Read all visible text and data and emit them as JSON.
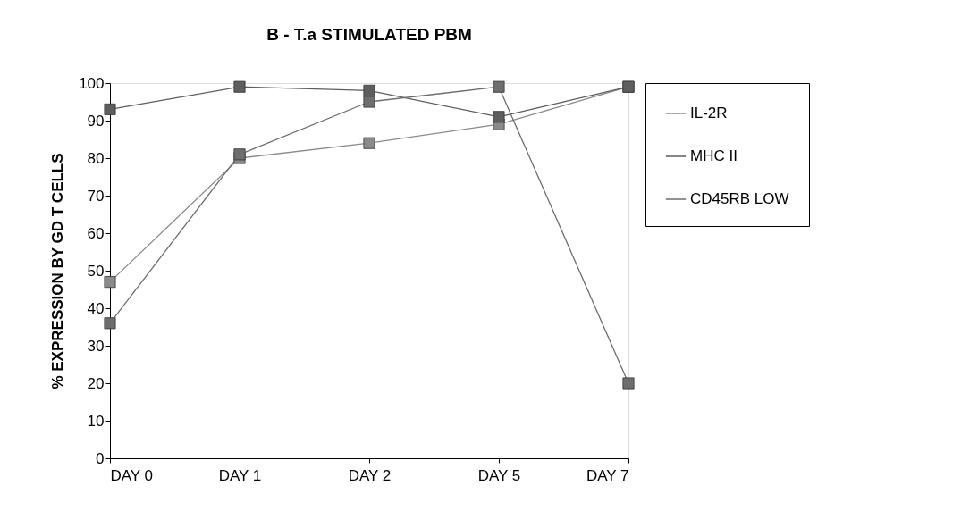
{
  "chart_data": {
    "type": "line",
    "title": "B - T.a STIMULATED PBM",
    "ylabel": "% EXPRESSION BY GD T CELLS",
    "categories": [
      "DAY 0",
      "DAY 1",
      "DAY 2",
      "DAY 5",
      "DAY 7"
    ],
    "series": [
      {
        "name": "IL-2R",
        "color": "#8a8a8a",
        "values": [
          47,
          80,
          84,
          89,
          99
        ]
      },
      {
        "name": "MHC II",
        "color": "#5e5e5e",
        "values": [
          93,
          99,
          98,
          91,
          99
        ]
      },
      {
        "name": "CD45RB LOW",
        "color": "#6e6e6e",
        "values": [
          36,
          81,
          95,
          99,
          20
        ]
      }
    ],
    "ylim": [
      0,
      100
    ],
    "yticks": [
      0,
      10,
      20,
      30,
      40,
      50,
      60,
      70,
      80,
      90,
      100
    ],
    "grid": false,
    "legend": "right",
    "marker": "square",
    "line_style": "solid"
  }
}
